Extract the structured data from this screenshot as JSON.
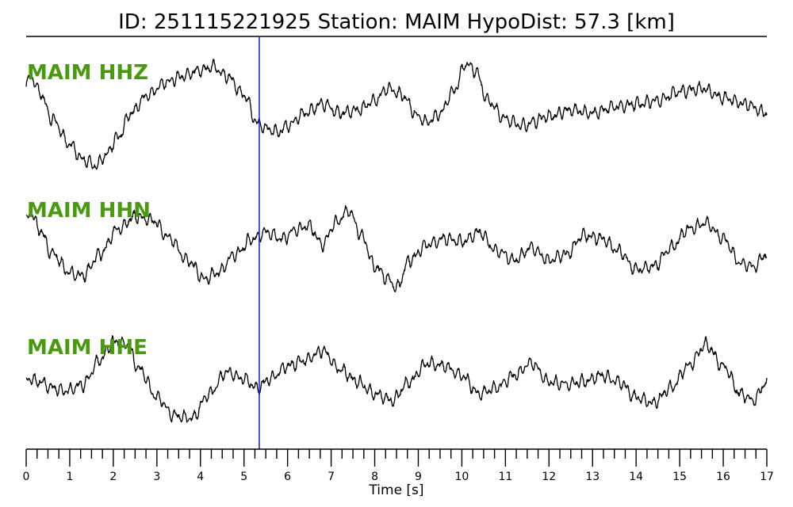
{
  "header": {
    "title": "ID: 251115221925   Station: MAIM   HypoDist:     57.3 [km]"
  },
  "chart_data": {
    "type": "line",
    "title": "ID: 251115221925   Station: MAIM   HypoDist:     57.3 [km]",
    "xlabel": "Time [s]",
    "ylabel": "",
    "xlim": [
      0,
      17
    ],
    "x_ticks": [
      0,
      1,
      2,
      3,
      4,
      5,
      6,
      7,
      8,
      9,
      10,
      11,
      12,
      13,
      14,
      15,
      16,
      17
    ],
    "minor_tick_step": 0.25,
    "grid": false,
    "pick_time": 5.35,
    "pick_color": "#1f2bd6",
    "label_color": "#4a9a10",
    "series": [
      {
        "name": "MAIM HHZ",
        "color": "#000000",
        "points": [
          [
            0.0,
            0.35
          ],
          [
            0.1,
            0.5
          ],
          [
            0.3,
            0.25
          ],
          [
            0.6,
            -0.2
          ],
          [
            1.0,
            -0.6
          ],
          [
            1.3,
            -0.85
          ],
          [
            1.6,
            -0.95
          ],
          [
            1.8,
            -0.8
          ],
          [
            2.1,
            -0.5
          ],
          [
            2.4,
            -0.1
          ],
          [
            2.8,
            0.2
          ],
          [
            3.2,
            0.4
          ],
          [
            3.6,
            0.5
          ],
          [
            4.0,
            0.6
          ],
          [
            4.3,
            0.65
          ],
          [
            4.6,
            0.5
          ],
          [
            5.0,
            0.2
          ],
          [
            5.3,
            -0.25
          ],
          [
            5.5,
            -0.35
          ],
          [
            5.8,
            -0.4
          ],
          [
            6.0,
            -0.3
          ],
          [
            6.4,
            -0.1
          ],
          [
            6.8,
            0.05
          ],
          [
            7.2,
            -0.1
          ],
          [
            7.6,
            -0.05
          ],
          [
            8.0,
            0.1
          ],
          [
            8.3,
            0.3
          ],
          [
            8.6,
            0.2
          ],
          [
            9.0,
            -0.15
          ],
          [
            9.2,
            -0.25
          ],
          [
            9.5,
            -0.1
          ],
          [
            9.8,
            0.25
          ],
          [
            10.1,
            0.7
          ],
          [
            10.3,
            0.6
          ],
          [
            10.6,
            0.1
          ],
          [
            11.0,
            -0.2
          ],
          [
            11.4,
            -0.3
          ],
          [
            12.0,
            -0.15
          ],
          [
            12.5,
            -0.05
          ],
          [
            13.0,
            -0.1
          ],
          [
            13.5,
            0.0
          ],
          [
            14.0,
            0.05
          ],
          [
            14.5,
            0.1
          ],
          [
            15.0,
            0.25
          ],
          [
            15.5,
            0.3
          ],
          [
            16.0,
            0.15
          ],
          [
            16.5,
            0.05
          ],
          [
            17.0,
            -0.1
          ]
        ]
      },
      {
        "name": "MAIM HHN",
        "color": "#000000",
        "points": [
          [
            0.0,
            0.35
          ],
          [
            0.1,
            0.5
          ],
          [
            0.3,
            0.2
          ],
          [
            0.6,
            -0.2
          ],
          [
            1.0,
            -0.5
          ],
          [
            1.3,
            -0.55
          ],
          [
            1.7,
            -0.2
          ],
          [
            2.1,
            0.2
          ],
          [
            2.5,
            0.4
          ],
          [
            2.9,
            0.35
          ],
          [
            3.3,
            0.05
          ],
          [
            3.7,
            -0.3
          ],
          [
            4.1,
            -0.6
          ],
          [
            4.4,
            -0.5
          ],
          [
            4.8,
            -0.2
          ],
          [
            5.2,
            0.05
          ],
          [
            5.5,
            0.15
          ],
          [
            5.9,
            0.05
          ],
          [
            6.2,
            0.2
          ],
          [
            6.5,
            0.25
          ],
          [
            6.8,
            -0.05
          ],
          [
            7.1,
            0.3
          ],
          [
            7.4,
            0.5
          ],
          [
            7.7,
            0.1
          ],
          [
            8.0,
            -0.4
          ],
          [
            8.3,
            -0.6
          ],
          [
            8.5,
            -0.75
          ],
          [
            8.8,
            -0.3
          ],
          [
            9.2,
            -0.05
          ],
          [
            9.6,
            0.05
          ],
          [
            10.0,
            0.0
          ],
          [
            10.4,
            0.15
          ],
          [
            10.8,
            -0.15
          ],
          [
            11.2,
            -0.3
          ],
          [
            11.6,
            -0.1
          ],
          [
            12.0,
            -0.3
          ],
          [
            12.4,
            -0.2
          ],
          [
            12.8,
            0.1
          ],
          [
            13.2,
            0.05
          ],
          [
            13.6,
            -0.15
          ],
          [
            14.0,
            -0.45
          ],
          [
            14.4,
            -0.4
          ],
          [
            14.8,
            -0.1
          ],
          [
            15.2,
            0.2
          ],
          [
            15.6,
            0.3
          ],
          [
            16.0,
            0.05
          ],
          [
            16.4,
            -0.35
          ],
          [
            16.7,
            -0.4
          ],
          [
            17.0,
            -0.2
          ]
        ]
      },
      {
        "name": "MAIM HHE",
        "color": "#000000",
        "points": [
          [
            0.0,
            -0.1
          ],
          [
            0.3,
            -0.15
          ],
          [
            0.6,
            -0.25
          ],
          [
            0.9,
            -0.3
          ],
          [
            1.3,
            -0.2
          ],
          [
            1.7,
            0.2
          ],
          [
            2.0,
            0.5
          ],
          [
            2.3,
            0.45
          ],
          [
            2.6,
            0.05
          ],
          [
            3.0,
            -0.4
          ],
          [
            3.4,
            -0.7
          ],
          [
            3.8,
            -0.75
          ],
          [
            4.2,
            -0.35
          ],
          [
            4.6,
            0.0
          ],
          [
            5.0,
            -0.1
          ],
          [
            5.3,
            -0.25
          ],
          [
            5.6,
            -0.1
          ],
          [
            6.0,
            0.1
          ],
          [
            6.4,
            0.2
          ],
          [
            6.8,
            0.35
          ],
          [
            7.2,
            0.05
          ],
          [
            7.6,
            -0.15
          ],
          [
            8.0,
            -0.35
          ],
          [
            8.4,
            -0.45
          ],
          [
            8.8,
            -0.15
          ],
          [
            9.2,
            0.15
          ],
          [
            9.6,
            0.1
          ],
          [
            10.0,
            -0.05
          ],
          [
            10.4,
            -0.35
          ],
          [
            10.8,
            -0.25
          ],
          [
            11.2,
            -0.05
          ],
          [
            11.6,
            0.15
          ],
          [
            12.0,
            -0.15
          ],
          [
            12.4,
            -0.2
          ],
          [
            12.8,
            -0.15
          ],
          [
            13.2,
            -0.05
          ],
          [
            13.6,
            -0.15
          ],
          [
            14.0,
            -0.4
          ],
          [
            14.4,
            -0.5
          ],
          [
            14.8,
            -0.25
          ],
          [
            15.2,
            0.1
          ],
          [
            15.6,
            0.45
          ],
          [
            16.0,
            0.1
          ],
          [
            16.4,
            -0.35
          ],
          [
            16.7,
            -0.45
          ],
          [
            17.0,
            -0.15
          ]
        ]
      }
    ]
  }
}
